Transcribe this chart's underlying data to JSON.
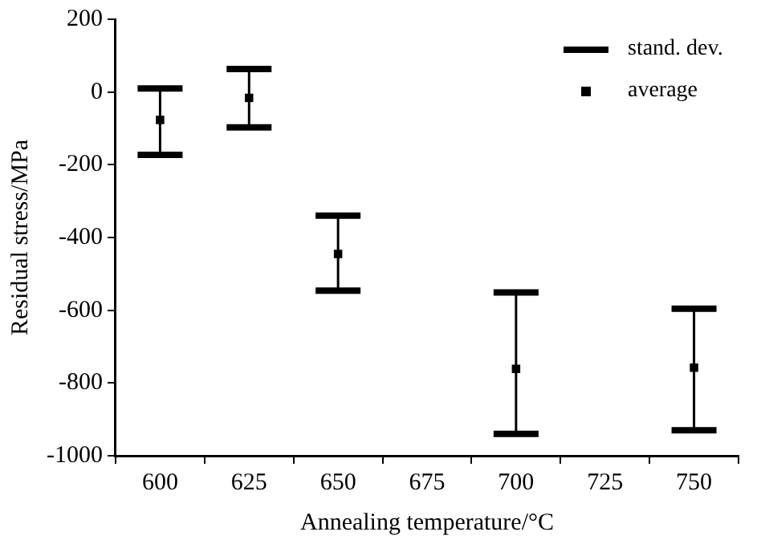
{
  "chart_data": {
    "type": "scatter",
    "xlabel": "Annealing temperature/°C",
    "ylabel": "Residual stress/MPa",
    "categories": [
      "600",
      "625",
      "650",
      "675",
      "700",
      "725",
      "750"
    ],
    "series": [
      {
        "name": "average",
        "color": "#000000",
        "marker": "square",
        "values": [
          -77,
          -16,
          -445,
          null,
          -761,
          null,
          -758
        ],
        "errors": [
          [
            -173,
            10
          ],
          [
            -97,
            63
          ],
          [
            -546,
            -340
          ],
          null,
          [
            -940,
            -551
          ],
          null,
          [
            -930,
            -596
          ]
        ]
      }
    ],
    "annotations": [
      "stand. dev."
    ],
    "ylim": [
      -1000,
      200
    ],
    "yticks": [
      -1000,
      -800,
      -600,
      -400,
      -200,
      0,
      200
    ],
    "grid": false,
    "legend": "top right"
  }
}
